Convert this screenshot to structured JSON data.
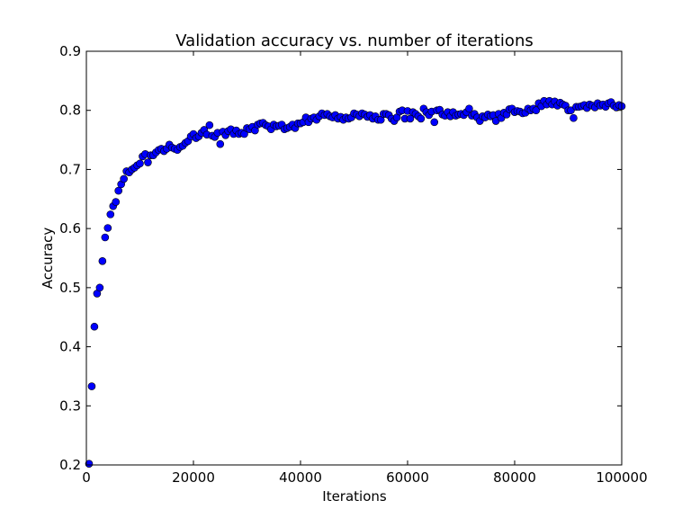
{
  "chart_data": {
    "type": "scatter",
    "title": "Validation accuracy vs. number of iterations",
    "xlabel": "Iterations",
    "ylabel": "Accuracy",
    "xlim": [
      0,
      100000
    ],
    "ylim": [
      0.2,
      0.9
    ],
    "xticks": [
      0,
      20000,
      40000,
      60000,
      80000,
      100000
    ],
    "xtick_labels": [
      "0",
      "20000",
      "40000",
      "60000",
      "80000",
      "100000"
    ],
    "yticks": [
      0.2,
      0.3,
      0.4,
      0.5,
      0.6,
      0.7,
      0.8,
      0.9
    ],
    "ytick_labels": [
      "0.2",
      "0.3",
      "0.4",
      "0.5",
      "0.6",
      "0.7",
      "0.8",
      "0.9"
    ],
    "grid": false,
    "marker_color": "#0000ff",
    "marker_edge_color": "#000000",
    "points": [
      [
        500,
        0.202
      ],
      [
        1000,
        0.333
      ],
      [
        1500,
        0.434
      ],
      [
        2000,
        0.49
      ],
      [
        2500,
        0.5
      ],
      [
        3000,
        0.545
      ],
      [
        3500,
        0.585
      ],
      [
        4000,
        0.601
      ],
      [
        4500,
        0.624
      ],
      [
        5000,
        0.638
      ],
      [
        5500,
        0.645
      ],
      [
        6000,
        0.664
      ],
      [
        6500,
        0.675
      ],
      [
        7000,
        0.684
      ],
      [
        7500,
        0.697
      ],
      [
        8000,
        0.695
      ],
      [
        8500,
        0.7
      ],
      [
        9000,
        0.703
      ],
      [
        9500,
        0.707
      ],
      [
        10000,
        0.71
      ],
      [
        10500,
        0.722
      ],
      [
        11000,
        0.726
      ],
      [
        11500,
        0.712
      ],
      [
        12000,
        0.724
      ],
      [
        12500,
        0.724
      ],
      [
        13000,
        0.729
      ],
      [
        13500,
        0.733
      ],
      [
        14000,
        0.735
      ],
      [
        14500,
        0.731
      ],
      [
        15000,
        0.735
      ],
      [
        15500,
        0.742
      ],
      [
        16000,
        0.737
      ],
      [
        16500,
        0.735
      ],
      [
        17000,
        0.733
      ],
      [
        17500,
        0.738
      ],
      [
        18000,
        0.74
      ],
      [
        18500,
        0.745
      ],
      [
        19000,
        0.748
      ],
      [
        19500,
        0.756
      ],
      [
        20000,
        0.76
      ],
      [
        20500,
        0.753
      ],
      [
        21000,
        0.756
      ],
      [
        21500,
        0.762
      ],
      [
        22000,
        0.767
      ],
      [
        22500,
        0.759
      ],
      [
        23000,
        0.775
      ],
      [
        23500,
        0.757
      ],
      [
        24000,
        0.755
      ],
      [
        24500,
        0.762
      ],
      [
        25000,
        0.743
      ],
      [
        25500,
        0.764
      ],
      [
        26000,
        0.758
      ],
      [
        26500,
        0.765
      ],
      [
        27000,
        0.768
      ],
      [
        27500,
        0.76
      ],
      [
        28000,
        0.766
      ],
      [
        28500,
        0.76
      ],
      [
        29000,
        0.762
      ],
      [
        29500,
        0.76
      ],
      [
        30000,
        0.77
      ],
      [
        30500,
        0.768
      ],
      [
        31000,
        0.772
      ],
      [
        31500,
        0.766
      ],
      [
        32000,
        0.776
      ],
      [
        32500,
        0.778
      ],
      [
        33000,
        0.779
      ],
      [
        33500,
        0.775
      ],
      [
        34000,
        0.773
      ],
      [
        34500,
        0.768
      ],
      [
        35000,
        0.776
      ],
      [
        35500,
        0.773
      ],
      [
        36000,
        0.774
      ],
      [
        36500,
        0.776
      ],
      [
        37000,
        0.768
      ],
      [
        37500,
        0.77
      ],
      [
        38000,
        0.772
      ],
      [
        38500,
        0.776
      ],
      [
        39000,
        0.77
      ],
      [
        39500,
        0.778
      ],
      [
        40000,
        0.778
      ],
      [
        40500,
        0.78
      ],
      [
        41000,
        0.788
      ],
      [
        41500,
        0.78
      ],
      [
        42000,
        0.786
      ],
      [
        42500,
        0.788
      ],
      [
        43000,
        0.784
      ],
      [
        43500,
        0.79
      ],
      [
        44000,
        0.795
      ],
      [
        44500,
        0.792
      ],
      [
        45000,
        0.794
      ],
      [
        45500,
        0.79
      ],
      [
        46000,
        0.788
      ],
      [
        46500,
        0.792
      ],
      [
        47000,
        0.786
      ],
      [
        47500,
        0.789
      ],
      [
        48000,
        0.784
      ],
      [
        48500,
        0.788
      ],
      [
        49000,
        0.786
      ],
      [
        49500,
        0.788
      ],
      [
        50000,
        0.795
      ],
      [
        50500,
        0.793
      ],
      [
        51000,
        0.79
      ],
      [
        51500,
        0.795
      ],
      [
        52000,
        0.793
      ],
      [
        52500,
        0.789
      ],
      [
        53000,
        0.792
      ],
      [
        53500,
        0.786
      ],
      [
        54000,
        0.79
      ],
      [
        54500,
        0.784
      ],
      [
        55000,
        0.784
      ],
      [
        55500,
        0.794
      ],
      [
        56000,
        0.794
      ],
      [
        56500,
        0.792
      ],
      [
        57000,
        0.786
      ],
      [
        57500,
        0.782
      ],
      [
        58000,
        0.788
      ],
      [
        58500,
        0.798
      ],
      [
        59000,
        0.8
      ],
      [
        59500,
        0.786
      ],
      [
        60000,
        0.799
      ],
      [
        60500,
        0.786
      ],
      [
        61000,
        0.797
      ],
      [
        61500,
        0.794
      ],
      [
        62000,
        0.79
      ],
      [
        62500,
        0.786
      ],
      [
        63000,
        0.803
      ],
      [
        63500,
        0.797
      ],
      [
        64000,
        0.792
      ],
      [
        64500,
        0.798
      ],
      [
        65000,
        0.78
      ],
      [
        65500,
        0.8
      ],
      [
        66000,
        0.801
      ],
      [
        66500,
        0.793
      ],
      [
        67000,
        0.791
      ],
      [
        67500,
        0.797
      ],
      [
        68000,
        0.79
      ],
      [
        68500,
        0.797
      ],
      [
        69000,
        0.791
      ],
      [
        69500,
        0.793
      ],
      [
        70000,
        0.794
      ],
      [
        70500,
        0.792
      ],
      [
        71000,
        0.797
      ],
      [
        71500,
        0.803
      ],
      [
        72000,
        0.791
      ],
      [
        72500,
        0.794
      ],
      [
        73000,
        0.788
      ],
      [
        73500,
        0.782
      ],
      [
        74000,
        0.79
      ],
      [
        74500,
        0.788
      ],
      [
        75000,
        0.793
      ],
      [
        75500,
        0.79
      ],
      [
        76000,
        0.792
      ],
      [
        76500,
        0.782
      ],
      [
        77000,
        0.794
      ],
      [
        77500,
        0.787
      ],
      [
        78000,
        0.796
      ],
      [
        78500,
        0.793
      ],
      [
        79000,
        0.802
      ],
      [
        79500,
        0.803
      ],
      [
        80000,
        0.797
      ],
      [
        80500,
        0.799
      ],
      [
        81000,
        0.798
      ],
      [
        81500,
        0.795
      ],
      [
        82000,
        0.796
      ],
      [
        82500,
        0.803
      ],
      [
        83000,
        0.8
      ],
      [
        83500,
        0.803
      ],
      [
        84000,
        0.8
      ],
      [
        84500,
        0.812
      ],
      [
        85000,
        0.807
      ],
      [
        85500,
        0.816
      ],
      [
        86000,
        0.81
      ],
      [
        86500,
        0.816
      ],
      [
        87000,
        0.81
      ],
      [
        87500,
        0.815
      ],
      [
        88000,
        0.808
      ],
      [
        88500,
        0.813
      ],
      [
        89000,
        0.81
      ],
      [
        89500,
        0.808
      ],
      [
        90000,
        0.8
      ],
      [
        90500,
        0.8
      ],
      [
        91000,
        0.787
      ],
      [
        91500,
        0.806
      ],
      [
        92000,
        0.806
      ],
      [
        92500,
        0.807
      ],
      [
        93000,
        0.809
      ],
      [
        93500,
        0.804
      ],
      [
        94000,
        0.81
      ],
      [
        94500,
        0.808
      ],
      [
        95000,
        0.805
      ],
      [
        95500,
        0.812
      ],
      [
        96000,
        0.808
      ],
      [
        96500,
        0.81
      ],
      [
        97000,
        0.806
      ],
      [
        97500,
        0.812
      ],
      [
        98000,
        0.814
      ],
      [
        98500,
        0.808
      ],
      [
        99000,
        0.805
      ],
      [
        99500,
        0.809
      ],
      [
        100000,
        0.807
      ]
    ]
  }
}
